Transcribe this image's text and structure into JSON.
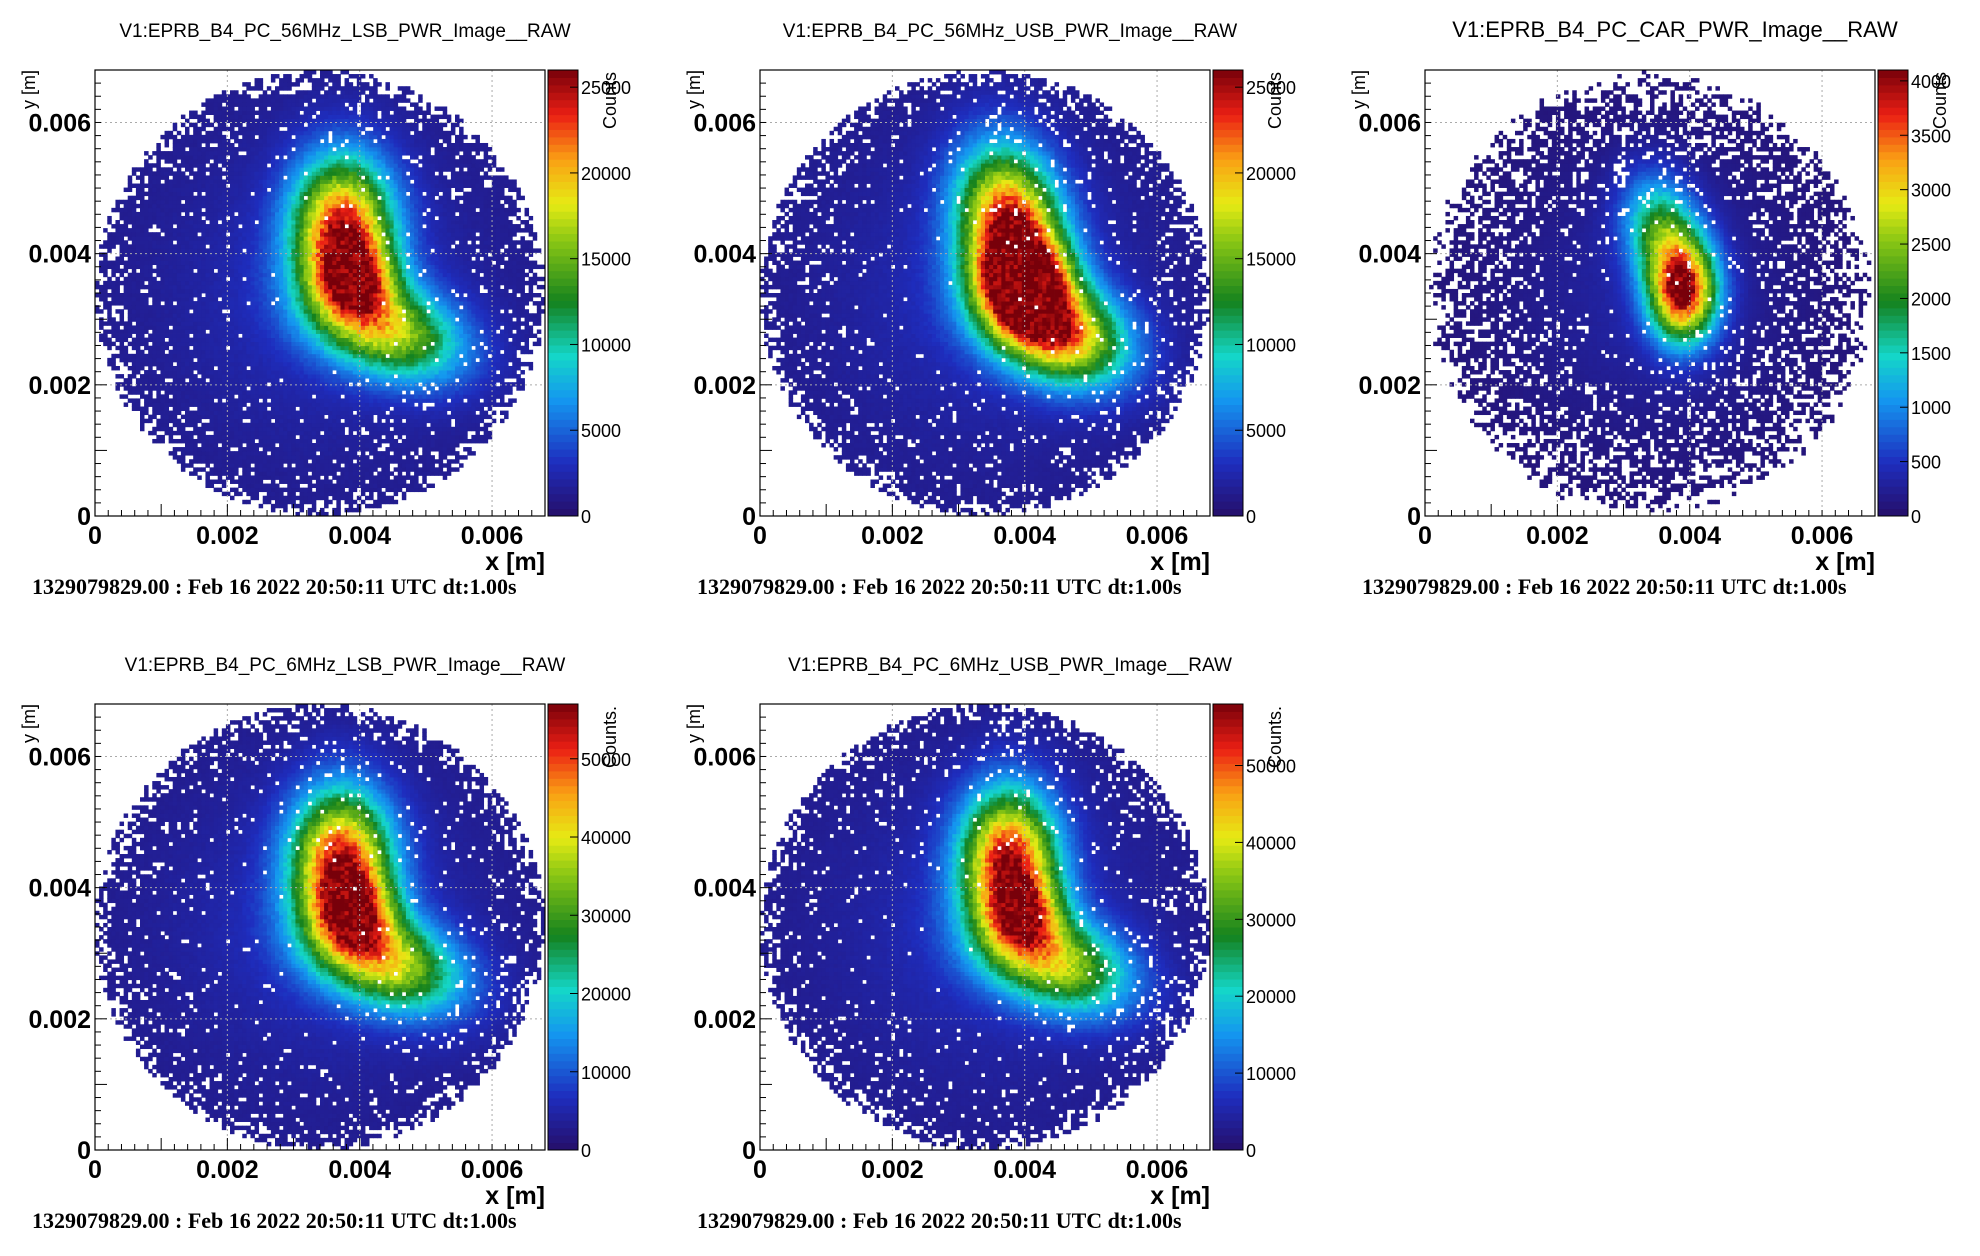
{
  "chart_data": [
    {
      "type": "heatmap",
      "title": "V1:EPRB_B4_PC_56MHz_LSB_PWR_Image__RAW",
      "xlabel": "x [m]",
      "ylabel": "y [m]",
      "zlabel": "Counts",
      "xticks": [
        "0",
        "0.002",
        "0.004",
        "0.006"
      ],
      "yticks": [
        "0",
        "0.002",
        "0.004",
        "0.006"
      ],
      "xlim": [
        0,
        0.0068
      ],
      "ylim": [
        0,
        0.0068
      ],
      "zmax": 26000,
      "zticks": [
        "0",
        "5000",
        "10000",
        "15000",
        "20000",
        "25000"
      ],
      "grid": true,
      "colormap": "rainbow",
      "footer": "1329079829.00 : Feb 16 2022 20:50:11 UTC dt:1.00s",
      "disk": {
        "center": [
          0.0034,
          0.0034
        ],
        "radius": 0.0034
      },
      "background_level": 0.05,
      "blobs": [
        {
          "x": 0.00374,
          "y": 0.00435,
          "sx": 0.00052,
          "sy": 0.00076,
          "rot": 0,
          "amp": 0.86
        },
        {
          "x": 0.00442,
          "y": 0.00285,
          "sx": 0.0008,
          "sy": 0.00048,
          "rot": -20,
          "amp": 0.58
        },
        {
          "x": 0.00395,
          "y": 0.0036,
          "sx": 0.0004,
          "sy": 0.0004,
          "rot": 0,
          "amp": 0.42
        }
      ],
      "noise_level": 0.15,
      "noise_seed": 11
    },
    {
      "type": "heatmap",
      "title": "V1:EPRB_B4_PC_56MHz_USB_PWR_Image__RAW",
      "xlabel": "x [m]",
      "ylabel": "y [m]",
      "zlabel": "Counts",
      "xticks": [
        "0",
        "0.002",
        "0.004",
        "0.006"
      ],
      "yticks": [
        "0",
        "0.002",
        "0.004",
        "0.006"
      ],
      "xlim": [
        0,
        0.0068
      ],
      "ylim": [
        0,
        0.0068
      ],
      "zmax": 26000,
      "zticks": [
        "0",
        "5000",
        "10000",
        "15000",
        "20000",
        "25000"
      ],
      "grid": true,
      "colormap": "rainbow",
      "footer": "1329079829.00 : Feb 16 2022 20:50:11 UTC dt:1.00s",
      "disk": {
        "center": [
          0.0034,
          0.0034
        ],
        "radius": 0.0034
      },
      "background_level": 0.05,
      "blobs": [
        {
          "x": 0.00378,
          "y": 0.0044,
          "sx": 0.00052,
          "sy": 0.00082,
          "rot": 10,
          "amp": 0.88
        },
        {
          "x": 0.00445,
          "y": 0.00285,
          "sx": 0.00075,
          "sy": 0.0005,
          "rot": -25,
          "amp": 0.82
        },
        {
          "x": 0.004,
          "y": 0.0036,
          "sx": 0.00045,
          "sy": 0.00045,
          "rot": 0,
          "amp": 0.72
        }
      ],
      "noise_level": 0.15,
      "noise_seed": 23
    },
    {
      "type": "heatmap",
      "title": "V1:EPRB_B4_PC_CAR_PWR_Image__RAW",
      "xlabel": "x [m]",
      "ylabel": "y [m]",
      "zlabel": "Counts",
      "xticks": [
        "0",
        "0.002",
        "0.004",
        "0.006"
      ],
      "yticks": [
        "0",
        "0.002",
        "0.004",
        "0.006"
      ],
      "xlim": [
        0,
        0.0068
      ],
      "ylim": [
        0,
        0.0068
      ],
      "zmax": 4100,
      "zticks": [
        "0",
        "500",
        "1000",
        "1500",
        "2000",
        "2500",
        "3000",
        "3500",
        "4000"
      ],
      "grid": true,
      "colormap": "rainbow",
      "footer": "1329079829.00 : Feb 16 2022 20:50:11 UTC dt:1.00s",
      "disk": {
        "center": [
          0.0034,
          0.0034
        ],
        "radius": 0.0034
      },
      "background_level": 0.02,
      "blobs": [
        {
          "x": 0.0039,
          "y": 0.0034,
          "sx": 0.00035,
          "sy": 0.00052,
          "rot": 0,
          "amp": 0.85
        },
        {
          "x": 0.0036,
          "y": 0.0043,
          "sx": 0.00038,
          "sy": 0.0006,
          "rot": 15,
          "amp": 0.45
        }
      ],
      "noise_level": 0.55,
      "noise_seed": 41
    },
    {
      "type": "heatmap",
      "title": "V1:EPRB_B4_PC_6MHz_LSB_PWR_Image__RAW",
      "xlabel": "x [m]",
      "ylabel": "y [m]",
      "zlabel": "Counts.",
      "xticks": [
        "0",
        "0.002",
        "0.004",
        "0.006"
      ],
      "yticks": [
        "0",
        "0.002",
        "0.004",
        "0.006"
      ],
      "xlim": [
        0,
        0.0068
      ],
      "ylim": [
        0,
        0.0068
      ],
      "zmax": 57000,
      "zticks": [
        "0",
        "10000",
        "20000",
        "30000",
        "40000",
        "50000"
      ],
      "grid": true,
      "colormap": "rainbow",
      "footer": "1329079829.00 : Feb 16 2022 20:50:11 UTC dt:1.00s",
      "disk": {
        "center": [
          0.0034,
          0.0034
        ],
        "radius": 0.0034
      },
      "background_level": 0.05,
      "blobs": [
        {
          "x": 0.00372,
          "y": 0.00437,
          "sx": 0.00052,
          "sy": 0.00076,
          "rot": 0,
          "amp": 0.86
        },
        {
          "x": 0.00442,
          "y": 0.00287,
          "sx": 0.0008,
          "sy": 0.00048,
          "rot": -20,
          "amp": 0.6
        },
        {
          "x": 0.00395,
          "y": 0.0036,
          "sx": 0.0004,
          "sy": 0.0004,
          "rot": 0,
          "amp": 0.42
        }
      ],
      "noise_level": 0.15,
      "noise_seed": 57
    },
    {
      "type": "heatmap",
      "title": "V1:EPRB_B4_PC_6MHz_USB_PWR_Image__RAW",
      "xlabel": "x [m]",
      "ylabel": "y [m]",
      "zlabel": "Counts.",
      "xticks": [
        "0",
        "0.002",
        "0.004",
        "0.006"
      ],
      "yticks": [
        "0",
        "0.002",
        "0.004",
        "0.006"
      ],
      "xlim": [
        0,
        0.0068
      ],
      "ylim": [
        0,
        0.0068
      ],
      "zmax": 58000,
      "zticks": [
        "0",
        "10000",
        "20000",
        "30000",
        "40000",
        "50000"
      ],
      "grid": true,
      "colormap": "rainbow",
      "footer": "1329079829.00 : Feb 16 2022 20:50:11 UTC dt:1.00s",
      "disk": {
        "center": [
          0.0034,
          0.0034
        ],
        "radius": 0.0034
      },
      "background_level": 0.05,
      "blobs": [
        {
          "x": 0.00376,
          "y": 0.00441,
          "sx": 0.0005,
          "sy": 0.00074,
          "rot": 0,
          "amp": 0.86
        },
        {
          "x": 0.00446,
          "y": 0.00287,
          "sx": 0.0008,
          "sy": 0.00048,
          "rot": -20,
          "amp": 0.58
        },
        {
          "x": 0.004,
          "y": 0.0036,
          "sx": 0.0004,
          "sy": 0.0004,
          "rot": 0,
          "amp": 0.4
        }
      ],
      "noise_level": 0.15,
      "noise_seed": 73
    }
  ]
}
